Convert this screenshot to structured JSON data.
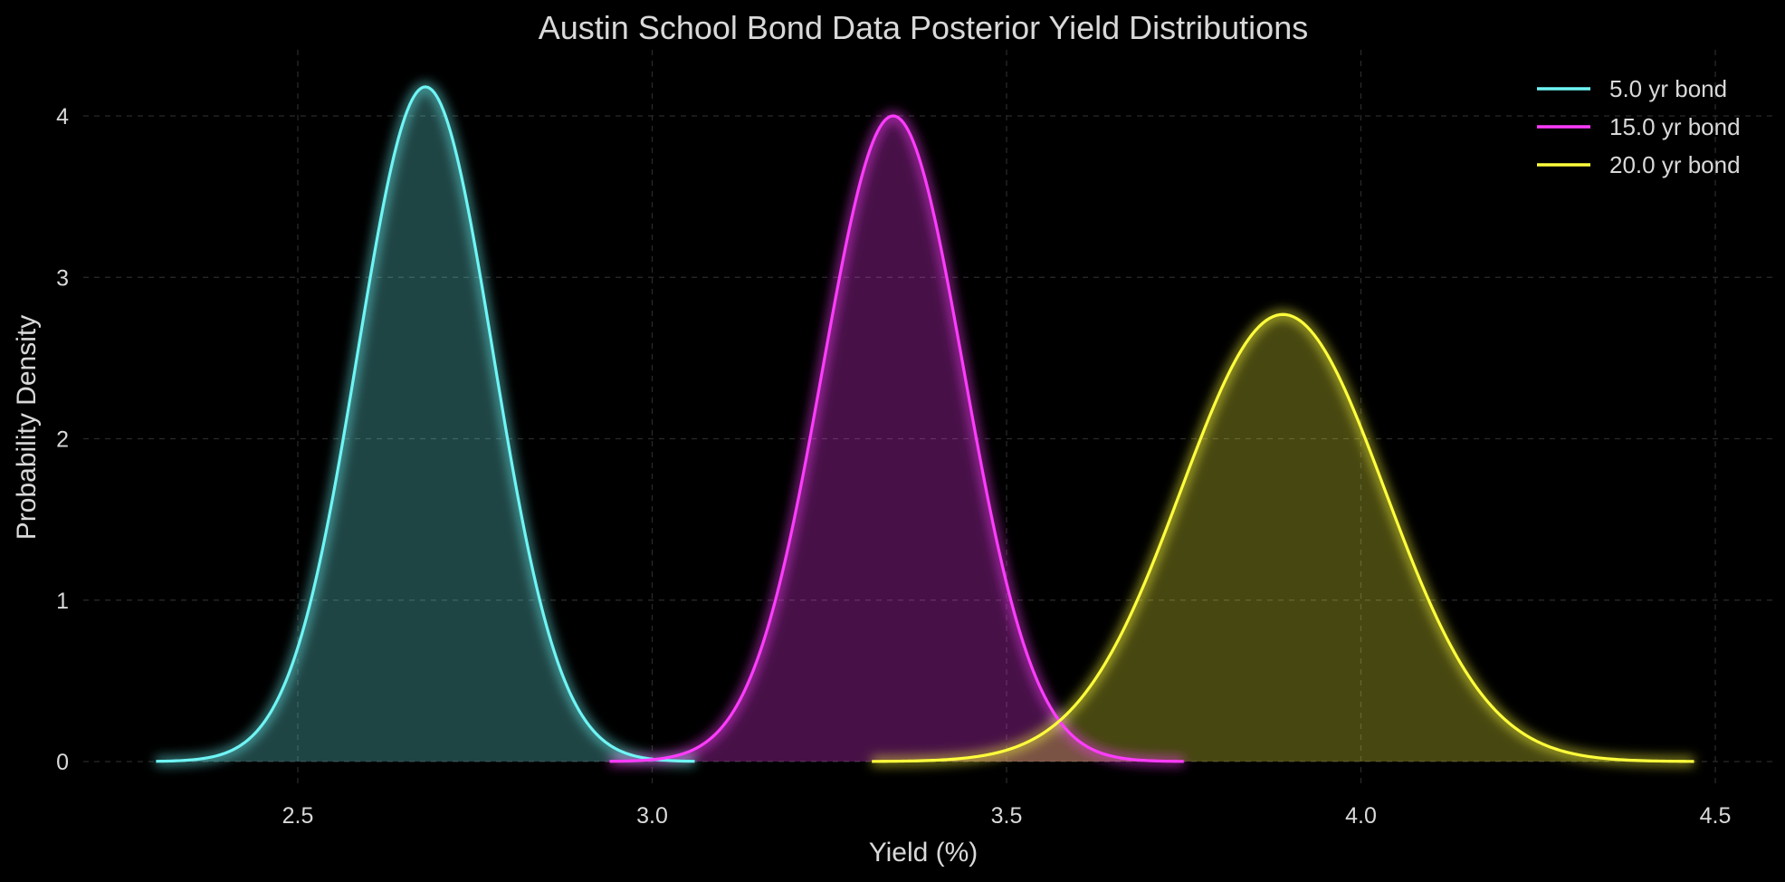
{
  "chart_data": {
    "type": "line",
    "title": "Austin School Bond Data Posterior Yield Distributions",
    "xlabel": "Yield (%)",
    "ylabel": "Probability Density",
    "xlim": [
      2.2,
      4.55
    ],
    "ylim": [
      -0.1,
      4.4
    ],
    "xticks": [
      2.5,
      3.0,
      3.5,
      4.0,
      4.5
    ],
    "xtick_labels": [
      "2.5",
      "3.0",
      "3.5",
      "4.0",
      "4.5"
    ],
    "yticks": [
      0,
      1,
      2,
      3,
      4
    ],
    "ytick_labels": [
      "0",
      "1",
      "2",
      "3",
      "4"
    ],
    "grid": true,
    "legend_position": "top-right",
    "background": "#000000",
    "series": [
      {
        "name": "5.0 yr bond",
        "color": "#6ff5f5",
        "fill": "#1f4a4a",
        "mean": 2.68,
        "peak": 4.18,
        "x_range": [
          2.3,
          3.06
        ]
      },
      {
        "name": "15.0 yr bond",
        "color": "#ff3cff",
        "fill": "#420c42",
        "mean": 3.34,
        "peak": 4.0,
        "x_range": [
          2.94,
          3.75
        ]
      },
      {
        "name": "20.0 yr bond",
        "color": "#ffff3c",
        "fill": "#4a4414",
        "mean": 3.89,
        "peak": 2.77,
        "x_range": [
          3.31,
          4.47
        ]
      }
    ]
  }
}
